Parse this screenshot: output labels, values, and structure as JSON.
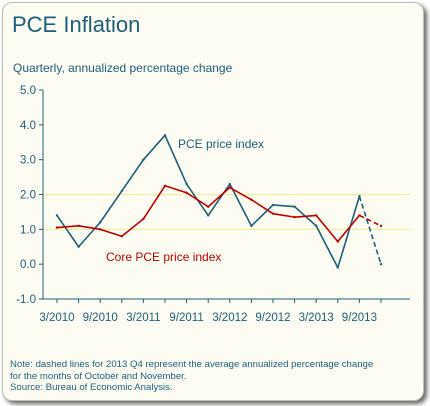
{
  "title": "PCE Inflation",
  "subtitle": "Quarterly, annualized percentage change",
  "note": {
    "lines": [
      "Note: dashed lines for 2013 Q4 represent the average annualized percentage change",
      "for the months of October and November.",
      "Source: Bureau of Economic Analysis."
    ]
  },
  "colors": {
    "background": "#fcfcf3",
    "pce": "#1f5f7a",
    "core": "#c00000",
    "gridline": "#f2ee9b",
    "axis": "#1f5f7a"
  },
  "chart_data": {
    "type": "line",
    "ylim": [
      -1.0,
      5.0
    ],
    "yticks": [
      "5.0",
      "4.0",
      "3.0",
      "2.0",
      "1.0",
      "0.0",
      "-1.0"
    ],
    "xticks": [
      "3/2010",
      "9/2010",
      "3/2011",
      "9/2011",
      "3/2012",
      "9/2012",
      "3/2013",
      "9/2013"
    ],
    "x": [
      "3/2010",
      "6/2010",
      "9/2010",
      "12/2010",
      "3/2011",
      "6/2011",
      "9/2011",
      "12/2011",
      "3/2012",
      "6/2012",
      "9/2012",
      "12/2012",
      "3/2013",
      "6/2013",
      "9/2013",
      "12/2013"
    ],
    "gridlines": [
      1.0,
      2.0
    ],
    "series": [
      {
        "name": "PCE price index",
        "values": [
          1.4,
          0.5,
          1.2,
          2.1,
          3.0,
          3.7,
          2.3,
          1.4,
          2.3,
          1.1,
          1.7,
          1.65,
          1.1,
          -0.1,
          1.95,
          0.0
        ],
        "dashed_from_index": 14
      },
      {
        "name": "Core PCE price index",
        "values": [
          1.05,
          1.1,
          1.0,
          0.8,
          1.3,
          2.25,
          2.05,
          1.65,
          2.2,
          1.85,
          1.45,
          1.35,
          1.4,
          0.65,
          1.4,
          1.1
        ],
        "dashed_from_index": 14
      }
    ],
    "annotations": [
      {
        "text": "PCE price index",
        "series": 0
      },
      {
        "text": "Core PCE price index",
        "series": 1
      }
    ]
  }
}
